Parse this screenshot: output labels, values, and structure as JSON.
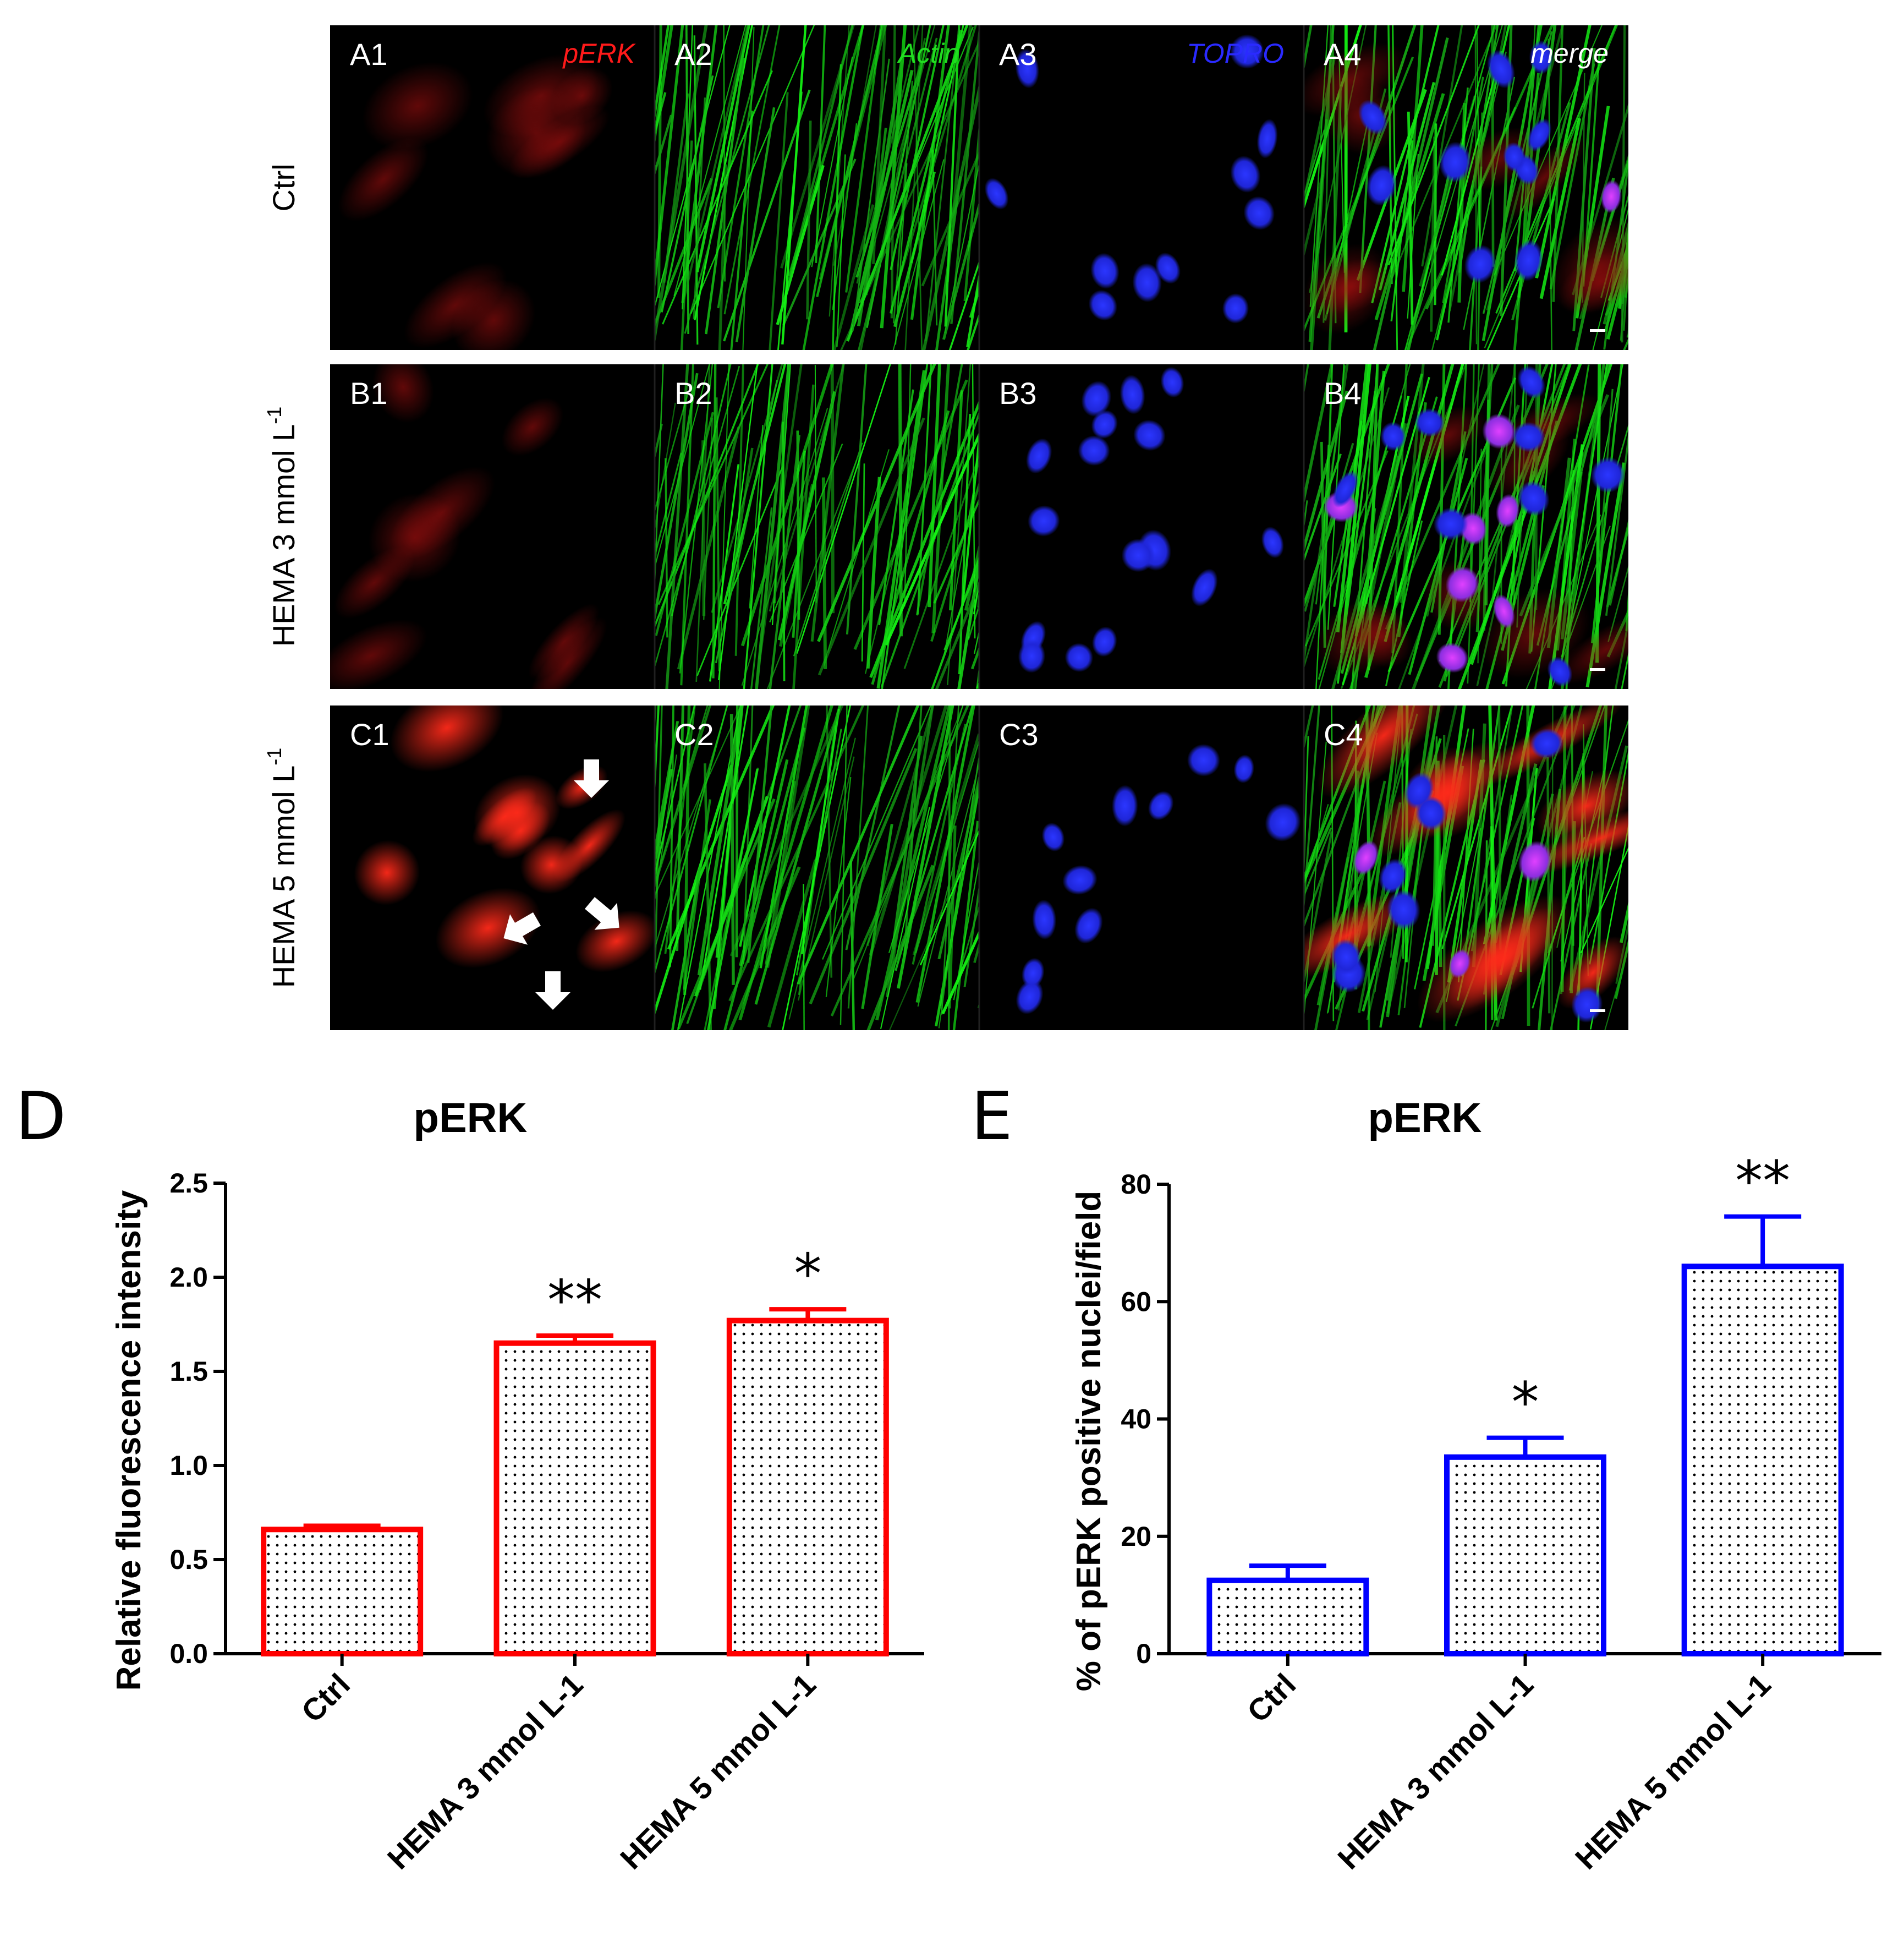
{
  "micrographs": {
    "rows": [
      {
        "label": "Ctrl",
        "superscript": "",
        "tiles": [
          "A1",
          "A2",
          "A3",
          "A4"
        ]
      },
      {
        "label": "HEMA 3 mmol L",
        "superscript": "-1",
        "tiles": [
          "B1",
          "B2",
          "B3",
          "B4"
        ]
      },
      {
        "label": "HEMA 5 mmol L",
        "superscript": "-1",
        "tiles": [
          "C1",
          "C2",
          "C3",
          "C4"
        ]
      }
    ],
    "channels": [
      {
        "name": "pERK",
        "color": "#ff1a1a"
      },
      {
        "name": "Actin",
        "color": "#22dd22"
      },
      {
        "name": "TOPRO",
        "color": "#2a2aff"
      },
      {
        "name": "merge",
        "color": "#ffffff"
      }
    ]
  },
  "chart_data": [
    {
      "panel": "D",
      "type": "bar",
      "title": "pERK",
      "xlabel": "",
      "ylabel": "Relative fluorescence intensity",
      "categories": [
        "Ctrl",
        "HEMA 3 mmol L-1",
        "HEMA 5 mmol L-1"
      ],
      "values": [
        0.66,
        1.65,
        1.77
      ],
      "errors": [
        0.02,
        0.04,
        0.06
      ],
      "significance": [
        "",
        "**",
        "*"
      ],
      "ylim": [
        0,
        2.5
      ],
      "yticks": [
        "0.0",
        "0.5",
        "1.0",
        "1.5",
        "2.0",
        "2.5"
      ],
      "color": "#ff0000",
      "fill": "dotted"
    },
    {
      "panel": "E",
      "type": "bar",
      "title": "pERK",
      "xlabel": "",
      "ylabel": "% of pERK positive nuclei/field",
      "categories": [
        "Ctrl",
        "HEMA 3 mmol L-1",
        "HEMA 5 mmol L-1"
      ],
      "values": [
        12.5,
        33.5,
        66
      ],
      "errors": [
        2.5,
        3.3,
        8.5
      ],
      "significance": [
        "",
        "*",
        "**"
      ],
      "ylim": [
        0,
        80
      ],
      "yticks": [
        "0",
        "20",
        "40",
        "60",
        "80"
      ],
      "color": "#0000ff",
      "fill": "dotted"
    }
  ]
}
